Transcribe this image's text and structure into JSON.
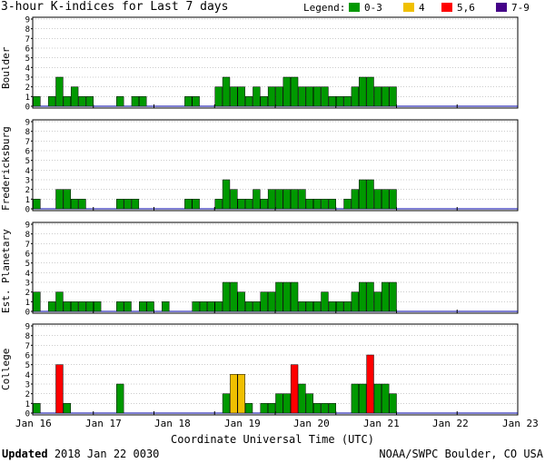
{
  "title": "3-hour K-indices for Last 7 days",
  "legend": {
    "label": "Legend:",
    "items": [
      {
        "label": "0-3",
        "color": "#009900"
      },
      {
        "label": "4",
        "color": "#f0c000"
      },
      {
        "label": "5,6",
        "color": "#ff0000"
      },
      {
        "label": "7-9",
        "color": "#440088"
      }
    ]
  },
  "footer": {
    "updated_label": "Updated",
    "updated_value": "2018 Jan 22 0030",
    "source": "NOAA/SWPC Boulder, CO USA"
  },
  "chart_data": {
    "type": "bar",
    "xlabel": "Coordinate Universal Time (UTC)",
    "x_ticks": [
      "Jan 16",
      "Jan 17",
      "Jan 18",
      "Jan 19",
      "Jan 20",
      "Jan 21",
      "Jan 22",
      "Jan 23"
    ],
    "y_ticks": [
      "0",
      "1",
      "2",
      "3",
      "4",
      "5",
      "6",
      "7",
      "8",
      "9"
    ],
    "ylim": [
      0,
      9
    ],
    "interval_hours": 3,
    "color_scale": {
      "0-3": "#009900",
      "4": "#f0c000",
      "5,6": "#ff0000",
      "7-9": "#440088"
    },
    "series": [
      {
        "name": "Boulder",
        "values": [
          1,
          0,
          1,
          3,
          1,
          2,
          1,
          1,
          0,
          0,
          0,
          1,
          0,
          1,
          1,
          0,
          0,
          0,
          0,
          0,
          1,
          1,
          0,
          0,
          2,
          3,
          2,
          2,
          1,
          2,
          1,
          2,
          2,
          3,
          3,
          2,
          2,
          2,
          2,
          1,
          1,
          1,
          2,
          3,
          3,
          2,
          2,
          2
        ]
      },
      {
        "name": "Fredericksburg",
        "values": [
          1,
          0,
          0,
          2,
          2,
          1,
          1,
          0,
          0,
          0,
          0,
          1,
          1,
          1,
          0,
          0,
          0,
          0,
          0,
          0,
          1,
          1,
          0,
          0,
          1,
          3,
          2,
          1,
          1,
          2,
          1,
          2,
          2,
          2,
          2,
          2,
          1,
          1,
          1,
          1,
          0,
          1,
          2,
          3,
          3,
          2,
          2,
          2
        ]
      },
      {
        "name": "Est. Planetary",
        "values": [
          2,
          0,
          1,
          2,
          1,
          1,
          1,
          1,
          1,
          0,
          0,
          1,
          1,
          0,
          1,
          1,
          0,
          1,
          0,
          0,
          0,
          1,
          1,
          1,
          1,
          3,
          3,
          2,
          1,
          1,
          2,
          2,
          3,
          3,
          3,
          1,
          1,
          1,
          2,
          1,
          1,
          1,
          2,
          3,
          3,
          2,
          3,
          3
        ]
      },
      {
        "name": "College",
        "values": [
          1,
          0,
          0,
          5,
          1,
          0,
          0,
          0,
          0,
          0,
          0,
          3,
          0,
          0,
          0,
          0,
          0,
          0,
          0,
          0,
          0,
          0,
          0,
          0,
          0,
          2,
          4,
          4,
          1,
          0,
          1,
          1,
          2,
          2,
          5,
          3,
          2,
          1,
          1,
          1,
          0,
          0,
          3,
          3,
          6,
          3,
          3,
          2
        ]
      }
    ]
  }
}
